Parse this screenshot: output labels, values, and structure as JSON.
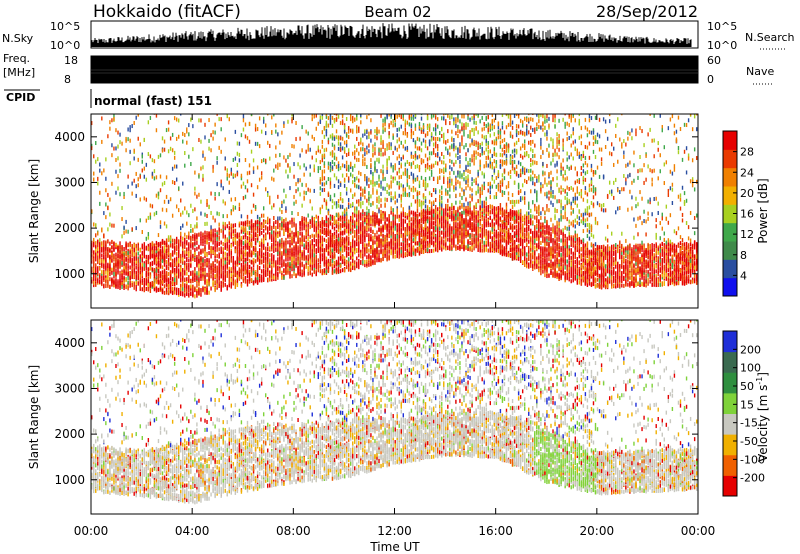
{
  "header": {
    "station": "Hokkaido (fitACF)",
    "beam": "Beam 02",
    "date": "28/Sep/2012"
  },
  "top_panels": {
    "nsky_label": "N.Sky",
    "nsearch_label": "N.Search",
    "nsky_ticks": [
      "10^5",
      "10^0"
    ],
    "nsky_ticks_right": [
      "10^5",
      "10^0"
    ],
    "freq_label": "Freq.",
    "freq_unit": "[MHz]",
    "freq_ticks": [
      "18",
      "8"
    ],
    "nave_ticks": [
      "60",
      "0"
    ],
    "nave_label": "Nave",
    "cpid_label": "CPID",
    "cpid_text": "normal (fast) 151"
  },
  "colors": {
    "power": [
      "#1010ee",
      "#2a4ea0",
      "#3f8a4a",
      "#3fa84a",
      "#a8d020",
      "#f2b000",
      "#f08000",
      "#ea3a00",
      "#e60000"
    ],
    "velocity": [
      "#1f2fd8",
      "#3a6a50",
      "#2f8f3f",
      "#7fd23a",
      "#c8c8c0",
      "#f0b000",
      "#f06000",
      "#e60000"
    ]
  },
  "chart_data": [
    {
      "type": "heatmap",
      "ylabel": "Slant Range [km]",
      "yticks": [
        "4000",
        "3000",
        "2000",
        "1000"
      ],
      "ylim": [
        250,
        4500
      ],
      "xlim": [
        0,
        24
      ],
      "colorbar": {
        "label": "Power [dB]",
        "ticks": [
          "28",
          "24",
          "20",
          "16",
          "12",
          "8",
          "4"
        ],
        "range": [
          0,
          32
        ]
      },
      "scatter_band": {
        "hours": [
          0,
          2,
          4,
          6,
          8,
          10,
          12,
          14,
          16,
          18,
          20,
          22,
          24
        ],
        "lower_km": [
          700,
          600,
          450,
          700,
          900,
          1000,
          1300,
          1500,
          1450,
          900,
          650,
          700,
          750
        ],
        "upper_km": [
          1700,
          1600,
          1800,
          2100,
          2150,
          2250,
          2300,
          2400,
          2450,
          2050,
          1550,
          1600,
          1650
        ]
      }
    },
    {
      "type": "heatmap",
      "ylabel": "Slant Range [km]",
      "yticks": [
        "4000",
        "3000",
        "2000",
        "1000"
      ],
      "ylim": [
        250,
        4500
      ],
      "xlim": [
        0,
        24
      ],
      "colorbar": {
        "label": "Velocity [m s",
        "label_sup": "-1",
        "label_end": "]",
        "ticks": [
          "200",
          "100",
          "50",
          "15",
          "-15",
          "-50",
          "-100",
          "-200"
        ],
        "range": [
          -250,
          250
        ]
      }
    }
  ],
  "xaxis": {
    "label": "Time UT",
    "ticks": [
      "00:00",
      "04:00",
      "08:00",
      "12:00",
      "16:00",
      "20:00",
      "00:00"
    ]
  }
}
